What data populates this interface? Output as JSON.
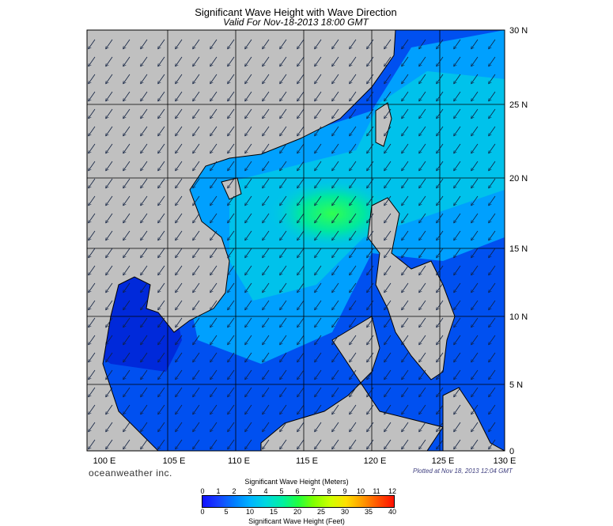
{
  "title": "Significant Wave Height with Wave Direction",
  "subtitle": "Valid For Nov-18-2013 18:00 GMT",
  "lon_labels": [
    "100 E",
    "105 E",
    "110 E",
    "115 E",
    "120 E",
    "125 E",
    "130 E"
  ],
  "lat_labels": [
    "30 N",
    "25 N",
    "20 N",
    "15 N",
    "10 N",
    "5 N",
    "0"
  ],
  "brand": "oceanweather inc.",
  "plotted": "Plotted at Nov 18, 2013 12:04 GMT",
  "legend": {
    "meters_title": "Significant Wave Height (Meters)",
    "meters_ticks": [
      "0",
      "1",
      "2",
      "3",
      "4",
      "5",
      "6",
      "7",
      "8",
      "9",
      "10",
      "11",
      "12"
    ],
    "feet_title": "Significant Wave Height (Feet)",
    "feet_ticks": [
      "0",
      "5",
      "10",
      "15",
      "20",
      "25",
      "30",
      "35",
      "40"
    ]
  },
  "colors": {
    "land": "#c0c0c0",
    "deep_low": "#0018d0",
    "low": "#0050f0",
    "mid": "#00a8ff",
    "high": "#00e890",
    "peak": "#40ff40"
  },
  "wave_direction_deg": 235
}
